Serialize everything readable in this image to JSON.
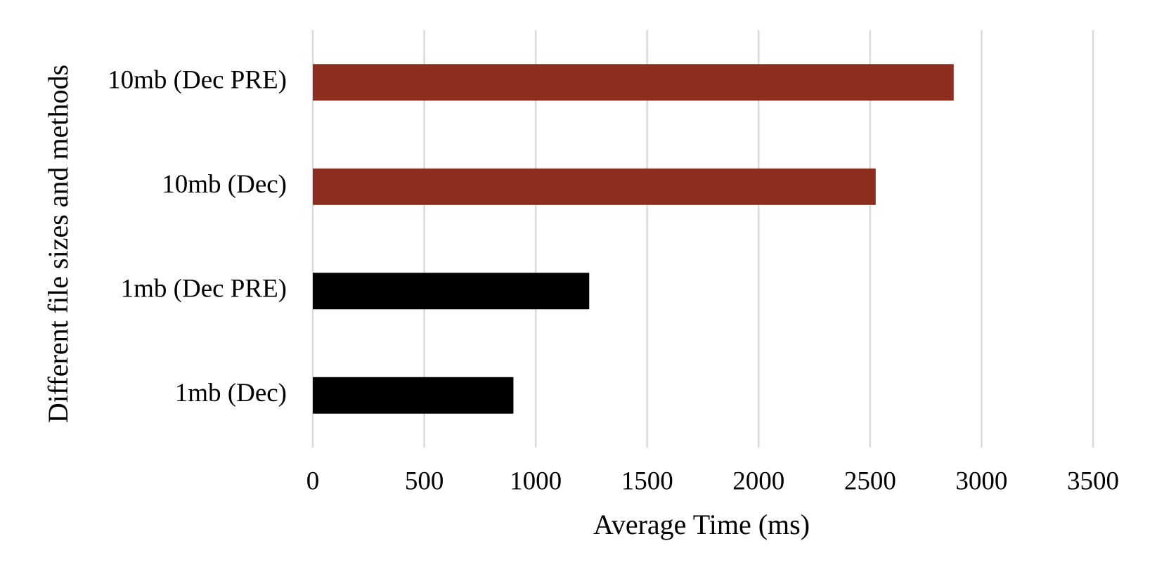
{
  "chart_data": {
    "type": "hbar",
    "x_label": "Average Time (ms)",
    "y_label": "Different file sizes and methods",
    "categories": [
      "1mb (Dec)",
      "1mb (Dec PRE)",
      "10mb (Dec)",
      "10mb (Dec PRE)"
    ],
    "values": [
      900,
      1240,
      2525,
      2875
    ],
    "colors": [
      "#000000",
      "#000000",
      "#8b2e1e",
      "#8b2e1e"
    ],
    "xlim": [
      0,
      3500
    ],
    "xticks": [
      0,
      500,
      1000,
      1500,
      2000,
      2500,
      3000,
      3500
    ],
    "grid": true
  }
}
